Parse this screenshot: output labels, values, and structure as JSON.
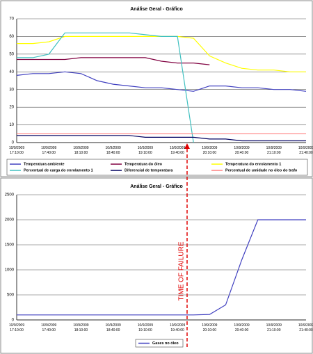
{
  "chart_data": [
    {
      "type": "line",
      "title": "Análise Geral - Gráfico",
      "categories": [
        "10/9/2009 17:10:00",
        null,
        "10/9/2009 17:40:00",
        null,
        "10/9/2009 18:10:00",
        null,
        "10/9/2009 18:40:00",
        null,
        "10/9/2009 19:10:00",
        null,
        "10/9/2009 19:40:00",
        null,
        "10/9/2009 20:10:00",
        null,
        "10/9/2009 20:40:00",
        null,
        "10/9/2009 21:10:00",
        null,
        "10/9/2009 21:40:00"
      ],
      "ylim": [
        0,
        70
      ],
      "yticks": [
        0,
        10,
        20,
        30,
        40,
        50,
        60,
        70
      ],
      "grid": true,
      "series": [
        {
          "name": "Temperatura ambiente",
          "color": "#4040c0",
          "values": [
            38,
            39,
            39,
            40,
            39,
            35,
            33,
            32,
            31,
            31,
            30,
            29,
            32,
            32,
            31,
            31,
            30,
            30,
            29
          ]
        },
        {
          "name": "Temperatura do óleo",
          "color": "#800040",
          "values": [
            47,
            47,
            47,
            47,
            48,
            48,
            48,
            48,
            48,
            46,
            45,
            45,
            44,
            null,
            null,
            null,
            null,
            null,
            null
          ]
        },
        {
          "name": "Temperatura do enrolamento 1",
          "color": "#ffff00",
          "values": [
            56,
            56,
            57,
            60,
            60,
            60,
            60,
            60,
            60,
            60,
            60,
            59,
            49,
            45,
            42,
            41,
            41,
            40,
            40
          ]
        },
        {
          "name": "Percentual de carga do enrolamento 1",
          "color": "#40c0c0",
          "values": [
            48,
            48,
            50,
            62,
            62,
            62,
            62,
            62,
            61,
            60,
            60,
            0,
            null,
            null,
            null,
            null,
            null,
            null,
            null
          ]
        },
        {
          "name": "Diferencial de temperatura",
          "color": "#000060",
          "values": [
            4,
            4,
            4,
            4,
            4,
            4,
            4,
            4,
            3,
            3,
            3,
            3,
            2,
            2,
            1,
            1,
            1,
            1,
            1
          ]
        },
        {
          "name": "Percentual de umidade no óleo do trafo",
          "color": "#ff8080",
          "values": [
            5,
            5,
            5,
            5,
            5,
            5,
            5,
            5,
            5,
            5,
            5,
            5,
            5,
            5,
            5,
            5,
            5,
            5,
            5
          ]
        }
      ]
    },
    {
      "type": "line",
      "title": "Análise Geral - Gráfico",
      "annotation": "TIME OF FAILURE",
      "categories": [
        "10/9/2009 17:10:00",
        null,
        "10/9/2009 17:40:00",
        null,
        "10/9/2009 18:10:00",
        null,
        "10/9/2009 18:40:00",
        null,
        "10/9/2009 19:10:00",
        null,
        "10/9/2009 19:40:00",
        null,
        "10/9/2009 20:10:00",
        null,
        "10/9/2009 20:40:00",
        null,
        "10/9/2009 21:10:00",
        null,
        "10/9/2009 21:40:00"
      ],
      "ylim": [
        0,
        2500
      ],
      "yticks": [
        0,
        500,
        1000,
        1500,
        2000,
        2500
      ],
      "grid": true,
      "series": [
        {
          "name": "Gases no óleo",
          "color": "#4040c0",
          "values": [
            100,
            100,
            100,
            100,
            100,
            100,
            100,
            100,
            100,
            100,
            100,
            100,
            110,
            300,
            1200,
            2000,
            2000,
            2000,
            2000
          ]
        }
      ]
    }
  ]
}
